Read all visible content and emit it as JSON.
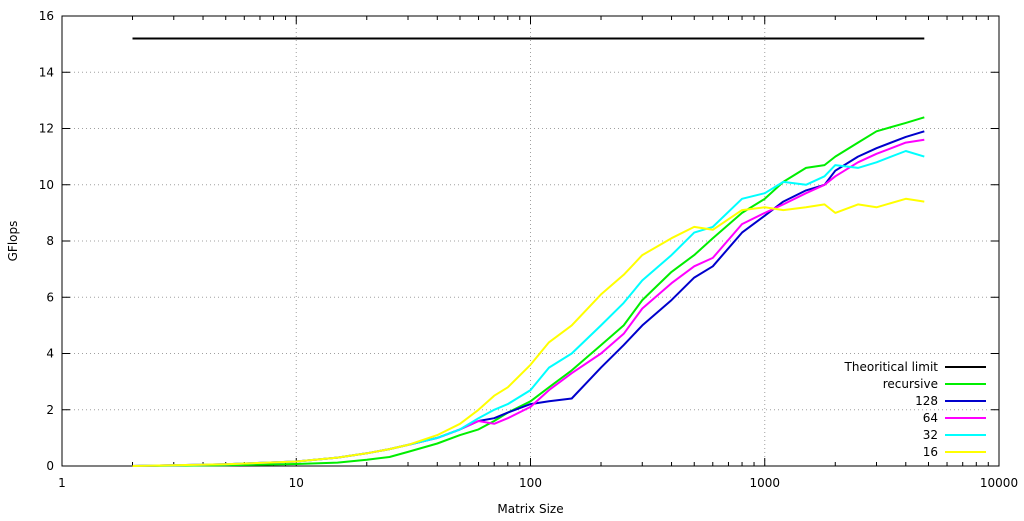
{
  "chart_data": {
    "type": "line",
    "title": "",
    "xlabel": "Matrix Size",
    "ylabel": "GFlops",
    "x_scale": "log",
    "xlim": [
      1,
      10000
    ],
    "ylim": [
      0,
      16
    ],
    "x_ticks": [
      1,
      10,
      100,
      1000,
      10000
    ],
    "x_tick_labels": [
      "1",
      "10",
      "100",
      "1000",
      "10000"
    ],
    "y_ticks": [
      0,
      2,
      4,
      6,
      8,
      10,
      12,
      14,
      16
    ],
    "y_tick_labels": [
      "0",
      "2",
      "4",
      "6",
      "8",
      "10",
      "12",
      "14",
      "16"
    ],
    "grid": true,
    "legend_position": "bottom-right",
    "series": [
      {
        "name": "Theoritical limit",
        "color": "#000000",
        "x": [
          2,
          4800
        ],
        "y": [
          15.2,
          15.2
        ]
      },
      {
        "name": "recursive",
        "color": "#00ee00",
        "x": [
          2,
          5,
          10,
          15,
          20,
          25,
          30,
          40,
          50,
          60,
          70,
          80,
          100,
          120,
          150,
          200,
          250,
          300,
          400,
          500,
          600,
          800,
          1000,
          1200,
          1500,
          1800,
          2000,
          2500,
          3000,
          4000,
          4800
        ],
        "y": [
          0.0,
          0.03,
          0.07,
          0.12,
          0.22,
          0.32,
          0.5,
          0.8,
          1.1,
          1.3,
          1.6,
          1.9,
          2.3,
          2.8,
          3.4,
          4.3,
          5.0,
          5.9,
          6.9,
          7.5,
          8.1,
          9.0,
          9.5,
          10.1,
          10.6,
          10.7,
          11.0,
          11.5,
          11.9,
          12.2,
          12.4
        ]
      },
      {
        "name": "128",
        "color": "#0000cc",
        "x": [
          2,
          5,
          10,
          15,
          20,
          25,
          30,
          40,
          50,
          60,
          70,
          80,
          100,
          120,
          150,
          200,
          250,
          300,
          400,
          500,
          600,
          800,
          1000,
          1200,
          1500,
          1800,
          2000,
          2500,
          3000,
          4000,
          4800
        ],
        "y": [
          0.0,
          0.06,
          0.16,
          0.3,
          0.45,
          0.6,
          0.75,
          1.0,
          1.3,
          1.6,
          1.7,
          1.9,
          2.2,
          2.3,
          2.4,
          3.5,
          4.3,
          5.0,
          5.9,
          6.7,
          7.1,
          8.3,
          8.9,
          9.4,
          9.8,
          10.0,
          10.5,
          11.0,
          11.3,
          11.7,
          11.9
        ]
      },
      {
        "name": "64",
        "color": "#ff00ff",
        "x": [
          2,
          5,
          10,
          15,
          20,
          25,
          30,
          40,
          50,
          60,
          70,
          80,
          100,
          120,
          150,
          200,
          250,
          300,
          400,
          500,
          600,
          800,
          1000,
          1200,
          1500,
          1800,
          2000,
          2500,
          3000,
          4000,
          4800
        ],
        "y": [
          0.0,
          0.06,
          0.16,
          0.3,
          0.45,
          0.6,
          0.75,
          1.0,
          1.3,
          1.6,
          1.5,
          1.7,
          2.1,
          2.7,
          3.3,
          4.0,
          4.7,
          5.6,
          6.5,
          7.1,
          7.4,
          8.6,
          9.0,
          9.3,
          9.7,
          10.0,
          10.3,
          10.8,
          11.1,
          11.5,
          11.6
        ]
      },
      {
        "name": "32",
        "color": "#00ffff",
        "x": [
          2,
          5,
          10,
          15,
          20,
          25,
          30,
          40,
          50,
          60,
          70,
          80,
          100,
          120,
          150,
          200,
          250,
          300,
          400,
          500,
          600,
          800,
          1000,
          1200,
          1500,
          1800,
          2000,
          2500,
          3000,
          4000,
          4800
        ],
        "y": [
          0.0,
          0.06,
          0.16,
          0.3,
          0.45,
          0.6,
          0.75,
          1.0,
          1.3,
          1.7,
          2.0,
          2.2,
          2.7,
          3.5,
          4.0,
          5.0,
          5.8,
          6.6,
          7.5,
          8.3,
          8.5,
          9.5,
          9.7,
          10.1,
          10.0,
          10.3,
          10.7,
          10.6,
          10.8,
          11.2,
          11.0
        ]
      },
      {
        "name": "16",
        "color": "#ffff00",
        "x": [
          2,
          5,
          10,
          15,
          20,
          25,
          30,
          40,
          50,
          60,
          70,
          80,
          100,
          120,
          150,
          200,
          250,
          300,
          400,
          500,
          600,
          800,
          1000,
          1200,
          1500,
          1800,
          2000,
          2500,
          3000,
          4000,
          4800
        ],
        "y": [
          0.0,
          0.06,
          0.16,
          0.3,
          0.45,
          0.6,
          0.75,
          1.1,
          1.5,
          2.0,
          2.5,
          2.8,
          3.6,
          4.4,
          5.0,
          6.1,
          6.8,
          7.5,
          8.1,
          8.5,
          8.4,
          9.1,
          9.2,
          9.1,
          9.2,
          9.3,
          9.0,
          9.3,
          9.2,
          9.5,
          9.4
        ]
      }
    ]
  }
}
